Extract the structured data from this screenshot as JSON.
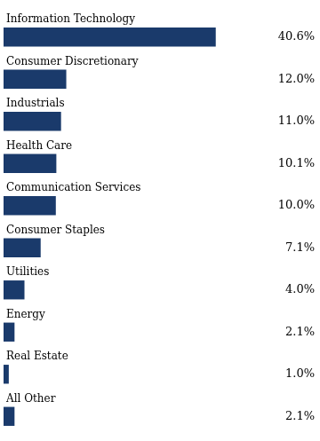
{
  "chart_data": {
    "type": "bar",
    "orientation": "horizontal",
    "categories": [
      "Information Technology",
      "Consumer Discretionary",
      "Industrials",
      "Health Care",
      "Communication Services",
      "Consumer Staples",
      "Utilities",
      "Energy",
      "Real Estate",
      "All Other"
    ],
    "values": [
      40.6,
      12.0,
      11.0,
      10.1,
      10.0,
      7.1,
      4.0,
      2.1,
      1.0,
      2.1
    ],
    "value_labels": [
      "40.6%",
      "12.0%",
      "11.0%",
      "10.1%",
      "10.0%",
      "7.1%",
      "4.0%",
      "2.1%",
      "1.0%",
      "2.1%"
    ],
    "color": "#1a3a6b",
    "xlim": [
      0,
      50
    ],
    "data_labels": true,
    "tick_labels": false,
    "grid": false
  }
}
